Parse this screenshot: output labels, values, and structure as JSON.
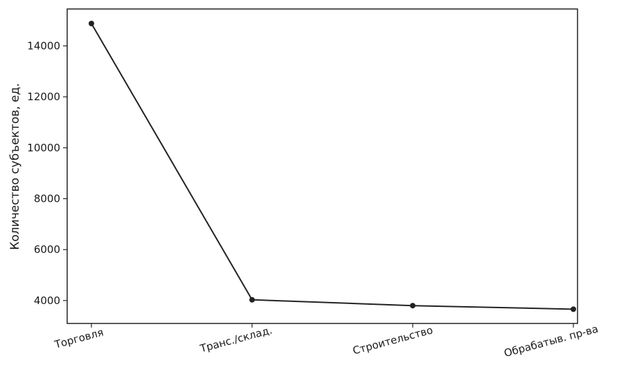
{
  "chart_data": {
    "type": "line",
    "title": "",
    "xlabel": "",
    "ylabel": "Количество субъектов, ед.",
    "categories": [
      "Торговля",
      "Транс./склад.",
      "Строительство",
      "Обрабатыв. пр-ва"
    ],
    "series": [
      {
        "values": [
          14880,
          4030,
          3800,
          3660
        ],
        "color": "#222222"
      }
    ],
    "yticks": [
      4000,
      6000,
      8000,
      10000,
      12000,
      14000
    ],
    "ytick_labels": [
      "4000",
      "6000",
      "8000",
      "10000",
      "12000",
      "14000"
    ],
    "ylim": [
      3100,
      15450
    ],
    "grid": false,
    "x_tick_rotation": 15
  }
}
